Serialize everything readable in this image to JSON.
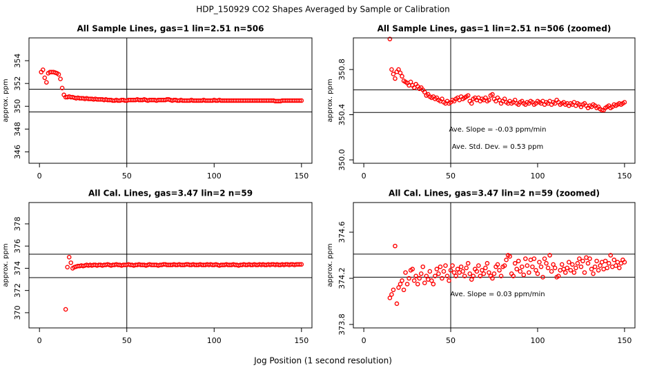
{
  "figure": {
    "title": "HDP_150929  CO2 Shapes Averaged by Sample or Calibration",
    "xlabel": "Jog Position (1 second resolution)"
  },
  "chart_data": [
    {
      "type": "scatter",
      "title": "All Sample Lines, gas=1 lin=2.51 n=506",
      "ylabel": "approx. ppm",
      "color": "#ff0000",
      "xlim": [
        -6,
        156
      ],
      "ylim": [
        345,
        356
      ],
      "xticks": [
        0,
        50,
        100,
        150
      ],
      "yticks": [
        346,
        348,
        350,
        352,
        354
      ],
      "hlines": [
        351.5,
        349.5
      ],
      "vlines": [
        50
      ],
      "annotations": [],
      "x": [
        1,
        2,
        3,
        4,
        5,
        6,
        7,
        8,
        9,
        10,
        11,
        12,
        13,
        14,
        15,
        16,
        17,
        18,
        19,
        20,
        21,
        22,
        23,
        24,
        25,
        26,
        27,
        28,
        29,
        30,
        31,
        32,
        33,
        34,
        35,
        36,
        37,
        38,
        39,
        40,
        41,
        42,
        43,
        44,
        45,
        46,
        47,
        48,
        49,
        50,
        51,
        52,
        53,
        54,
        55,
        56,
        57,
        58,
        59,
        60,
        61,
        62,
        63,
        64,
        65,
        66,
        67,
        68,
        69,
        70,
        71,
        72,
        73,
        74,
        75,
        76,
        77,
        78,
        79,
        80,
        81,
        82,
        83,
        84,
        85,
        86,
        87,
        88,
        89,
        90,
        91,
        92,
        93,
        94,
        95,
        96,
        97,
        98,
        99,
        100,
        101,
        102,
        103,
        104,
        105,
        106,
        107,
        108,
        109,
        110,
        111,
        112,
        113,
        114,
        115,
        116,
        117,
        118,
        119,
        120,
        121,
        122,
        123,
        124,
        125,
        126,
        127,
        128,
        129,
        130,
        131,
        132,
        133,
        134,
        135,
        136,
        137,
        138,
        139,
        140,
        141,
        142,
        143,
        144,
        145,
        146,
        147,
        148,
        149,
        150
      ],
      "values": [
        353.0,
        353.2,
        352.5,
        352.1,
        352.9,
        353.0,
        353.0,
        353.0,
        352.95,
        352.9,
        352.8,
        352.4,
        351.6,
        351.0,
        350.8,
        350.8,
        350.85,
        350.8,
        350.8,
        350.75,
        350.7,
        350.75,
        350.7,
        350.7,
        350.7,
        350.65,
        350.7,
        350.65,
        350.65,
        350.65,
        350.6,
        350.65,
        350.6,
        350.6,
        350.6,
        350.6,
        350.55,
        350.6,
        350.55,
        350.55,
        350.55,
        350.5,
        350.5,
        350.55,
        350.5,
        350.5,
        350.55,
        350.55,
        350.5,
        350.5,
        350.55,
        350.55,
        350.55,
        350.55,
        350.55,
        350.6,
        350.55,
        350.55,
        350.55,
        350.6,
        350.55,
        350.5,
        350.55,
        350.55,
        350.55,
        350.55,
        350.5,
        350.55,
        350.55,
        350.55,
        350.55,
        350.55,
        350.6,
        350.6,
        350.55,
        350.5,
        350.55,
        350.55,
        350.5,
        350.5,
        350.55,
        350.5,
        350.5,
        350.5,
        350.5,
        350.5,
        350.55,
        350.5,
        350.5,
        350.5,
        350.5,
        350.5,
        350.5,
        350.55,
        350.5,
        350.5,
        350.5,
        350.5,
        350.5,
        350.55,
        350.5,
        350.5,
        350.55,
        350.5,
        350.5,
        350.5,
        350.5,
        350.5,
        350.5,
        350.5,
        350.5,
        350.5,
        350.5,
        350.5,
        350.5,
        350.5,
        350.5,
        350.5,
        350.5,
        350.5,
        350.5,
        350.5,
        350.5,
        350.5,
        350.5,
        350.5,
        350.5,
        350.5,
        350.5,
        350.5,
        350.5,
        350.5,
        350.5,
        350.5,
        350.45,
        350.45,
        350.45,
        350.45,
        350.5,
        350.5,
        350.5,
        350.5,
        350.5,
        350.5,
        350.5,
        350.5,
        350.5,
        350.5,
        350.5,
        350.5
      ]
    },
    {
      "type": "scatter",
      "title": "All Sample Lines, gas=1 lin=2.51 n=506 (zoomed)",
      "ylabel": "approx. ppm",
      "color": "#ff0000",
      "xlim": [
        -6,
        156
      ],
      "ylim": [
        349.97,
        351.08
      ],
      "xticks": [
        0,
        50,
        100,
        150
      ],
      "yticks": [
        {
          "value": 350,
          "label": "350.0"
        },
        350.4,
        350.8
      ],
      "hlines": [
        350.62,
        350.42
      ],
      "vlines": [
        50
      ],
      "annotations": [
        "Ave. Slope =  -0.03  ppm/min",
        "Ave. Std. Dev. =  0.53  ppm"
      ],
      "x": [
        15,
        16,
        17,
        18,
        19,
        20,
        21,
        22,
        23,
        24,
        25,
        26,
        27,
        28,
        29,
        30,
        31,
        32,
        33,
        34,
        35,
        36,
        37,
        38,
        39,
        40,
        41,
        42,
        43,
        44,
        45,
        46,
        47,
        48,
        49,
        50,
        51,
        52,
        53,
        54,
        55,
        56,
        57,
        58,
        59,
        60,
        61,
        62,
        63,
        64,
        65,
        66,
        67,
        68,
        69,
        70,
        71,
        72,
        73,
        74,
        75,
        76,
        77,
        78,
        79,
        80,
        81,
        82,
        83,
        84,
        85,
        86,
        87,
        88,
        89,
        90,
        91,
        92,
        93,
        94,
        95,
        96,
        97,
        98,
        99,
        100,
        101,
        102,
        103,
        104,
        105,
        106,
        107,
        108,
        109,
        110,
        111,
        112,
        113,
        114,
        115,
        116,
        117,
        118,
        119,
        120,
        121,
        122,
        123,
        124,
        125,
        126,
        127,
        128,
        129,
        130,
        131,
        132,
        133,
        134,
        135,
        136,
        137,
        138,
        139,
        140,
        141,
        142,
        143,
        144,
        145,
        146,
        147,
        148,
        149,
        150
      ],
      "values": [
        351.07,
        350.8,
        350.76,
        350.72,
        350.78,
        350.8,
        350.77,
        350.74,
        350.7,
        350.69,
        350.68,
        350.66,
        350.69,
        350.66,
        350.64,
        350.67,
        350.65,
        350.63,
        350.64,
        350.62,
        350.6,
        350.57,
        350.58,
        350.56,
        350.55,
        350.56,
        350.54,
        350.55,
        350.53,
        350.52,
        350.54,
        350.51,
        350.5,
        350.52,
        350.5,
        350.51,
        350.53,
        350.52,
        350.54,
        350.55,
        350.53,
        350.56,
        350.54,
        350.55,
        350.56,
        350.57,
        350.52,
        350.5,
        350.54,
        350.55,
        350.53,
        350.55,
        350.52,
        350.54,
        350.53,
        350.55,
        350.52,
        350.53,
        350.57,
        350.58,
        350.54,
        350.52,
        350.55,
        350.53,
        350.5,
        350.52,
        350.54,
        350.51,
        350.5,
        350.52,
        350.5,
        350.51,
        350.53,
        350.5,
        350.49,
        350.51,
        350.52,
        350.5,
        350.49,
        350.51,
        350.5,
        350.52,
        350.51,
        350.49,
        350.5,
        350.52,
        350.51,
        350.5,
        350.52,
        350.49,
        350.51,
        350.5,
        350.52,
        350.49,
        350.51,
        350.5,
        350.53,
        350.51,
        350.49,
        350.5,
        350.51,
        350.49,
        350.5,
        350.48,
        350.5,
        350.49,
        350.51,
        350.48,
        350.5,
        350.49,
        350.47,
        350.49,
        350.5,
        350.48,
        350.46,
        350.48,
        350.47,
        350.49,
        350.48,
        350.46,
        350.47,
        350.45,
        350.44,
        350.44,
        350.46,
        350.47,
        350.48,
        350.46,
        350.47,
        350.49,
        350.48,
        350.49,
        350.5,
        350.49,
        350.5,
        350.51
      ]
    },
    {
      "type": "scatter",
      "title": "All Cal. Lines, gas=3.47 lin=2 n=59",
      "ylabel": "approx. ppm",
      "color": "#ff0000",
      "xlim": [
        -6,
        156
      ],
      "ylim": [
        368.63,
        379.92
      ],
      "xticks": [
        0,
        50,
        100,
        150
      ],
      "yticks": [
        370,
        372,
        374,
        376,
        378
      ],
      "hlines": [
        375.27,
        373.16
      ],
      "vlines": [
        50
      ],
      "annotations": [],
      "x": [
        15,
        16,
        17,
        18,
        19,
        20,
        21,
        22,
        23,
        24,
        25,
        26,
        27,
        28,
        29,
        30,
        31,
        32,
        33,
        34,
        35,
        36,
        37,
        38,
        39,
        40,
        41,
        42,
        43,
        44,
        45,
        46,
        47,
        48,
        49,
        50,
        51,
        52,
        53,
        54,
        55,
        56,
        57,
        58,
        59,
        60,
        61,
        62,
        63,
        64,
        65,
        66,
        67,
        68,
        69,
        70,
        71,
        72,
        73,
        74,
        75,
        76,
        77,
        78,
        79,
        80,
        81,
        82,
        83,
        84,
        85,
        86,
        87,
        88,
        89,
        90,
        91,
        92,
        93,
        94,
        95,
        96,
        97,
        98,
        99,
        100,
        101,
        102,
        103,
        104,
        105,
        106,
        107,
        108,
        109,
        110,
        111,
        112,
        113,
        114,
        115,
        116,
        117,
        118,
        119,
        120,
        121,
        122,
        123,
        124,
        125,
        126,
        127,
        128,
        129,
        130,
        131,
        132,
        133,
        134,
        135,
        136,
        137,
        138,
        139,
        140,
        141,
        142,
        143,
        144,
        145,
        146,
        147,
        148,
        149,
        150
      ],
      "values": [
        370.3,
        374.1,
        375.0,
        374.5,
        374.0,
        374.1,
        374.15,
        374.2,
        374.2,
        374.25,
        374.2,
        374.25,
        374.3,
        374.25,
        374.3,
        374.25,
        374.3,
        374.3,
        374.25,
        374.3,
        374.3,
        374.25,
        374.3,
        374.3,
        374.35,
        374.3,
        374.25,
        374.3,
        374.3,
        374.35,
        374.3,
        374.3,
        374.25,
        374.3,
        374.3,
        374.3,
        374.35,
        374.3,
        374.3,
        374.25,
        374.3,
        374.3,
        374.35,
        374.3,
        374.3,
        374.3,
        374.25,
        374.3,
        374.35,
        374.3,
        374.3,
        374.3,
        374.3,
        374.25,
        374.3,
        374.3,
        374.35,
        374.35,
        374.3,
        374.3,
        374.3,
        374.3,
        374.35,
        374.3,
        374.3,
        374.35,
        374.3,
        374.3,
        374.3,
        374.35,
        374.35,
        374.3,
        374.3,
        374.35,
        374.3,
        374.3,
        374.3,
        374.35,
        374.3,
        374.3,
        374.3,
        374.35,
        374.3,
        374.35,
        374.3,
        374.3,
        374.35,
        374.3,
        374.25,
        374.3,
        374.3,
        374.3,
        374.35,
        374.3,
        374.3,
        374.3,
        374.35,
        374.3,
        374.3,
        374.25,
        374.3,
        374.3,
        374.35,
        374.3,
        374.3,
        374.35,
        374.3,
        374.3,
        374.35,
        374.3,
        374.3,
        374.35,
        374.3,
        374.35,
        374.3,
        374.3,
        374.35,
        374.3,
        374.35,
        374.35,
        374.3,
        374.35,
        374.3,
        374.3,
        374.35,
        374.3,
        374.35,
        374.35,
        374.3,
        374.35,
        374.35,
        374.3,
        374.35,
        374.35,
        374.35,
        374.35
      ]
    },
    {
      "type": "scatter",
      "title": "All Cal. Lines, gas=3.47 lin=2 n=59 (zoomed)",
      "ylabel": "approx. ppm",
      "color": "#ff0000",
      "xlim": [
        -6,
        156
      ],
      "ylim": [
        373.77,
        374.857
      ],
      "xticks": [
        0,
        50,
        100,
        150
      ],
      "yticks": [
        373.8,
        374.2,
        374.6
      ],
      "hlines": [
        374.41,
        374.21
      ],
      "vlines": [
        50
      ],
      "annotations": [
        "Ave. Slope =  0.03  ppm/min"
      ],
      "x": [
        15,
        16,
        17,
        18,
        19,
        20,
        21,
        22,
        23,
        24,
        25,
        26,
        27,
        28,
        29,
        30,
        31,
        32,
        33,
        34,
        35,
        36,
        37,
        38,
        39,
        40,
        41,
        42,
        43,
        44,
        45,
        46,
        47,
        48,
        49,
        50,
        51,
        52,
        53,
        54,
        55,
        56,
        57,
        58,
        59,
        60,
        61,
        62,
        63,
        64,
        65,
        66,
        67,
        68,
        69,
        70,
        71,
        72,
        73,
        74,
        75,
        76,
        77,
        78,
        79,
        80,
        81,
        82,
        83,
        84,
        85,
        86,
        87,
        88,
        89,
        90,
        91,
        92,
        93,
        94,
        95,
        96,
        97,
        98,
        99,
        100,
        101,
        102,
        103,
        104,
        105,
        106,
        107,
        108,
        109,
        110,
        111,
        112,
        113,
        114,
        115,
        116,
        117,
        118,
        119,
        120,
        121,
        122,
        123,
        124,
        125,
        126,
        127,
        128,
        129,
        130,
        131,
        132,
        133,
        134,
        135,
        136,
        137,
        138,
        139,
        140,
        141,
        142,
        143,
        144,
        145,
        146,
        147,
        148,
        149,
        150
      ],
      "values": [
        374.03,
        374.06,
        374.1,
        374.48,
        373.98,
        374.12,
        374.15,
        374.18,
        374.1,
        374.25,
        374.15,
        374.2,
        374.27,
        374.28,
        374.18,
        374.22,
        374.15,
        374.2,
        374.24,
        374.3,
        374.16,
        374.22,
        374.19,
        374.26,
        374.18,
        374.15,
        374.22,
        374.28,
        374.24,
        374.3,
        374.2,
        374.26,
        374.31,
        374.22,
        374.18,
        374.27,
        374.31,
        374.25,
        374.22,
        374.28,
        374.25,
        374.3,
        374.26,
        374.22,
        374.29,
        374.33,
        374.24,
        374.19,
        374.22,
        374.28,
        374.26,
        374.31,
        374.22,
        374.27,
        374.24,
        374.29,
        374.33,
        374.25,
        374.22,
        374.2,
        374.24,
        374.3,
        374.32,
        374.27,
        374.22,
        374.3,
        374.31,
        374.36,
        374.4,
        374.39,
        374.24,
        374.22,
        374.33,
        374.28,
        374.35,
        374.26,
        374.3,
        374.23,
        374.37,
        374.31,
        374.25,
        374.36,
        374.3,
        374.37,
        374.27,
        374.24,
        374.34,
        374.3,
        374.21,
        374.37,
        374.33,
        374.29,
        374.4,
        374.26,
        374.32,
        374.29,
        374.21,
        374.22,
        374.27,
        374.32,
        374.28,
        374.25,
        374.29,
        374.34,
        374.27,
        374.32,
        374.25,
        374.29,
        374.33,
        374.37,
        374.3,
        374.35,
        374.25,
        374.38,
        374.33,
        374.37,
        374.28,
        374.24,
        374.3,
        374.35,
        374.27,
        374.31,
        374.34,
        374.28,
        374.35,
        374.29,
        374.33,
        374.4,
        374.3,
        374.36,
        374.31,
        374.34,
        374.29,
        374.33,
        374.36,
        374.34
      ]
    }
  ]
}
